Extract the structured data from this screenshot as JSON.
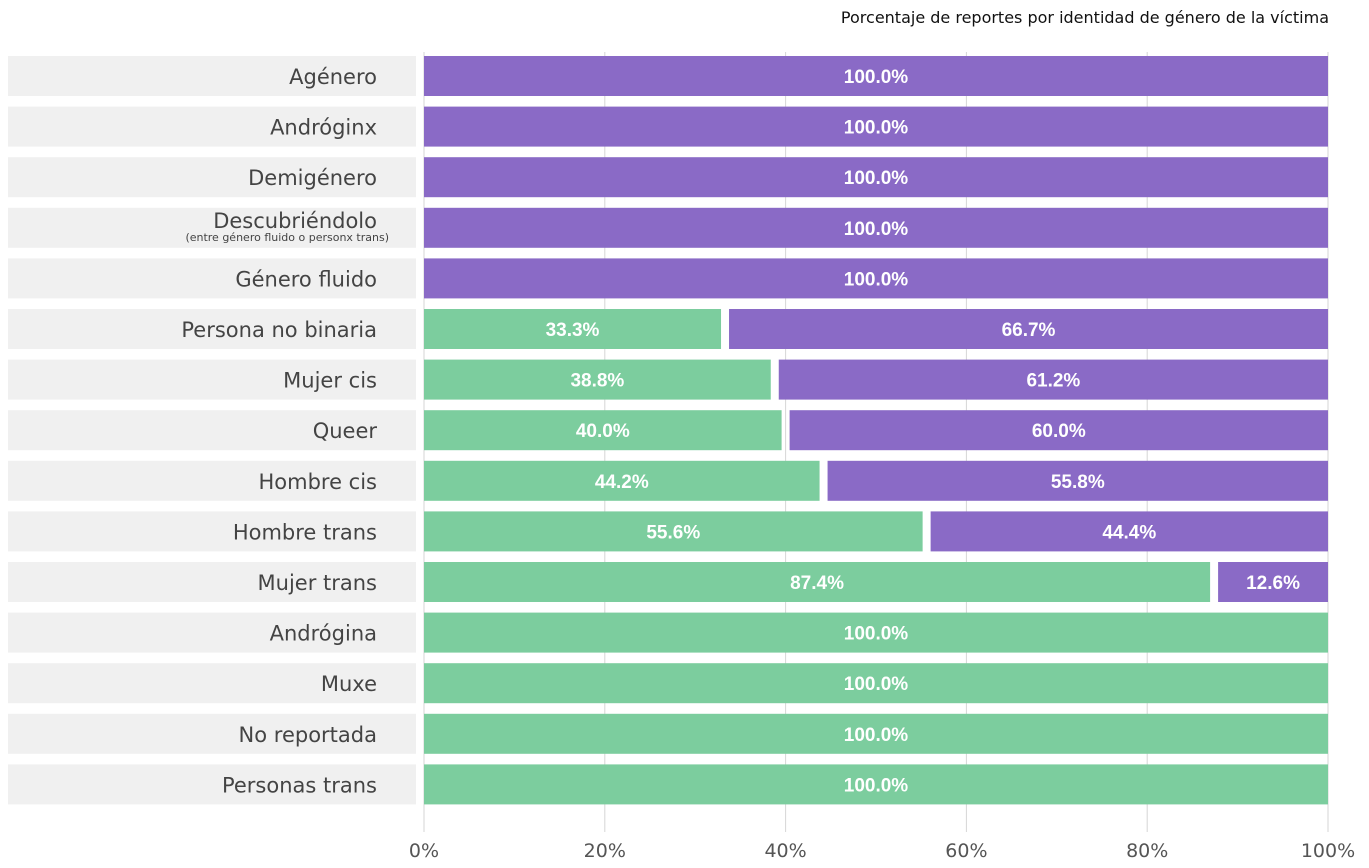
{
  "chart_data": {
    "type": "bar",
    "orientation": "horizontal",
    "stacked": true,
    "title": "Porcentaje de reportes por identidad de género de la víctima",
    "categories": [
      "Agénero",
      "Andróginx",
      "Demigénero",
      "Descubriéndolo",
      "Género fluido",
      "Persona no binaria",
      "Mujer cis",
      "Queer",
      "Hombre cis",
      "Hombre trans",
      "Mujer trans",
      "Andrógina",
      "Muxe",
      "No reportada",
      "Personas trans"
    ],
    "category_sublabels": [
      "",
      "",
      "",
      "(entre género fluido o personx trans)",
      "",
      "",
      "",
      "",
      "",
      "",
      "",
      "",
      "",
      "",
      ""
    ],
    "series": [
      {
        "color": "#7ccd9e",
        "values": [
          0,
          0,
          0,
          0,
          0,
          33.3,
          38.8,
          40.0,
          44.2,
          55.6,
          87.4,
          100.0,
          100.0,
          100.0,
          100.0
        ]
      },
      {
        "color": "#8a6ac6",
        "values": [
          100.0,
          100.0,
          100.0,
          100.0,
          100.0,
          66.7,
          61.2,
          60.0,
          55.8,
          44.4,
          12.6,
          0,
          0,
          0,
          0
        ]
      }
    ],
    "xlim": [
      0,
      100
    ],
    "xticks": [
      "0%",
      "20%",
      "40%",
      "60%",
      "80%",
      "100%"
    ],
    "xtick_values": [
      0,
      20,
      40,
      60,
      80,
      100
    ],
    "grid": true,
    "value_format": "{v}%"
  }
}
